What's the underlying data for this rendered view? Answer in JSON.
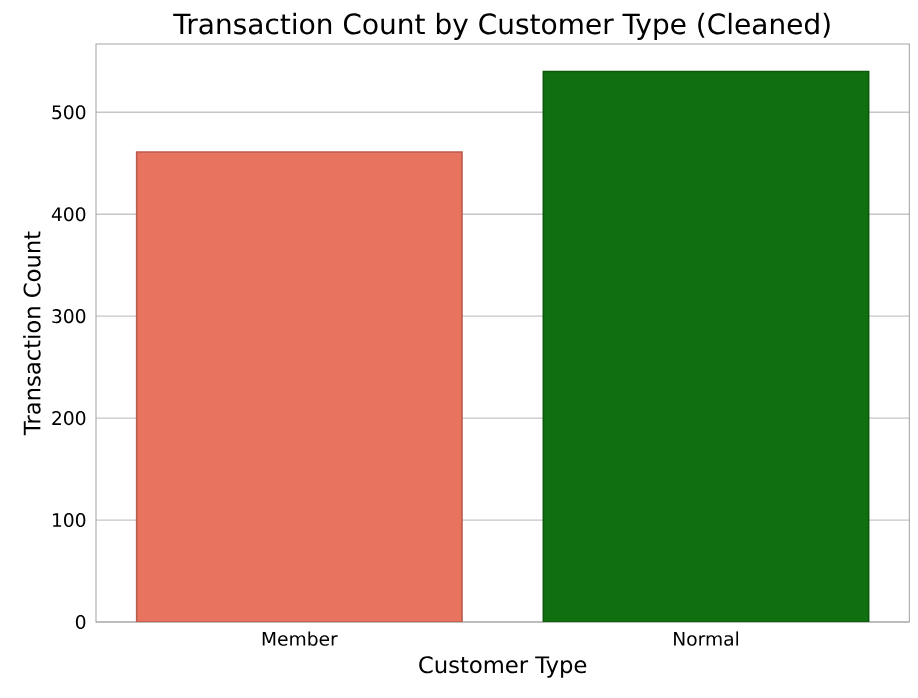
{
  "chart_data": {
    "type": "bar",
    "title": "Transaction Count by Customer Type (Cleaned)",
    "xlabel": "Customer Type",
    "ylabel": "Transaction Count",
    "categories": [
      "Member",
      "Normal"
    ],
    "values": [
      461,
      540
    ],
    "colors": [
      "#e8735f",
      "#107010"
    ],
    "ylim": [
      0,
      567
    ],
    "yticks": [
      0,
      100,
      200,
      300,
      400,
      500
    ],
    "grid": "y"
  }
}
